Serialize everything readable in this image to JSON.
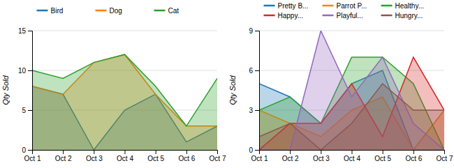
{
  "chart_data": [
    {
      "type": "area",
      "ylabel": "Qty Sold",
      "categories": [
        "Oct 1",
        "Oct 2",
        "Oct 3",
        "Oct 4",
        "Oct 5",
        "Oct 6",
        "Oct 7"
      ],
      "series": [
        {
          "name": "Bird",
          "values": [
            8,
            7,
            0,
            5,
            7,
            1,
            3
          ]
        },
        {
          "name": "Dog",
          "values": [
            8,
            7,
            11,
            12,
            7,
            3,
            3
          ]
        },
        {
          "name": "Cat",
          "values": [
            10,
            9,
            11,
            12,
            8,
            3,
            9
          ]
        }
      ],
      "ylim": [
        0,
        15
      ],
      "yticks": [
        0,
        5,
        10,
        15
      ],
      "grid": true,
      "legend": "top"
    },
    {
      "type": "area",
      "ylabel": "Qty Sold",
      "categories": [
        "Oct 1",
        "Oct 2",
        "Oct 3",
        "Oct 4",
        "Oct 5",
        "Oct 6",
        "Oct 7"
      ],
      "series": [
        {
          "name": "Pretty B...",
          "values": [
            5,
            4,
            2,
            5,
            6,
            0,
            0
          ]
        },
        {
          "name": "Parrot P...",
          "values": [
            3,
            2,
            1,
            3,
            4,
            0,
            3
          ]
        },
        {
          "name": "Healthy...",
          "values": [
            3,
            4,
            2,
            7,
            7,
            5,
            0
          ]
        },
        {
          "name": "Happy...",
          "values": [
            0,
            2,
            2,
            5,
            1,
            7,
            3
          ]
        },
        {
          "name": "Playful...",
          "values": [
            0,
            0,
            9,
            4,
            7,
            2,
            0
          ]
        },
        {
          "name": "Hungry...",
          "values": [
            1,
            2,
            0,
            2,
            5,
            3,
            3
          ]
        }
      ],
      "ylim": [
        0,
        9
      ],
      "yticks": [
        0,
        3,
        6,
        9
      ],
      "grid": true,
      "legend": "top"
    }
  ]
}
